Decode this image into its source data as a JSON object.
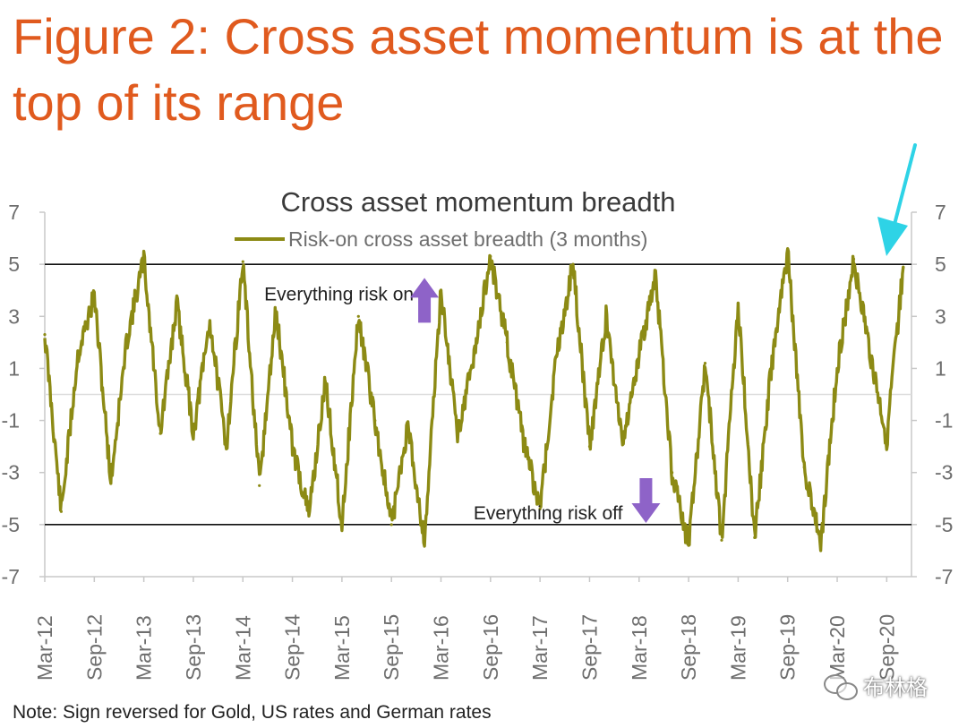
{
  "figure_title": "Figure 2: Cross asset momentum is at the top of its range",
  "note": "Note: Sign reversed for Gold, US rates and German rates",
  "watermark": "布林格",
  "colors": {
    "title": "#e05a1e",
    "series": "#8c8a14",
    "arrow_purple": "#8e63c8",
    "arrow_cyan": "#2ed3e6"
  },
  "chart_data": {
    "type": "line",
    "title": "Cross asset momentum breadth",
    "xlabel": "",
    "ylabel": "",
    "ylim": [
      -7,
      7
    ],
    "yticks": [
      7,
      5,
      3,
      1,
      -1,
      -3,
      -5,
      -7
    ],
    "xtick_labels": [
      "Mar-12",
      "Sep-12",
      "Mar-13",
      "Sep-13",
      "Mar-14",
      "Sep-14",
      "Mar-15",
      "Sep-15",
      "Mar-16",
      "Sep-16",
      "Mar-17",
      "Sep-17",
      "Mar-18",
      "Sep-18",
      "Mar-19",
      "Sep-19",
      "Mar-20",
      "Sep-20"
    ],
    "grid": false,
    "legend_position": "top-center",
    "reference_lines": [
      5,
      -5,
      0
    ],
    "annotations": [
      {
        "text": "Everything risk on",
        "x": "Jan-16",
        "y": 4.2,
        "arrow": "up"
      },
      {
        "text": "Everything risk off",
        "x": "Jun-18",
        "y": -4.8,
        "arrow": "down"
      }
    ],
    "series": [
      {
        "name": "Risk-on cross asset breadth (3 months)",
        "x": [
          "Mar-12",
          "May-12",
          "Jul-12",
          "Sep-12",
          "Nov-12",
          "Jan-13",
          "Mar-13",
          "May-13",
          "Jul-13",
          "Sep-13",
          "Nov-13",
          "Jan-14",
          "Mar-14",
          "May-14",
          "Jul-14",
          "Sep-14",
          "Nov-14",
          "Jan-15",
          "Mar-15",
          "May-15",
          "Jul-15",
          "Sep-15",
          "Nov-15",
          "Jan-16",
          "Mar-16",
          "May-16",
          "Jul-16",
          "Sep-16",
          "Nov-16",
          "Jan-17",
          "Mar-17",
          "May-17",
          "Jul-17",
          "Sep-17",
          "Nov-17",
          "Jan-18",
          "Mar-18",
          "May-18",
          "Jul-18",
          "Sep-18",
          "Nov-18",
          "Jan-19",
          "Mar-19",
          "May-19",
          "Jul-19",
          "Sep-19",
          "Nov-19",
          "Jan-20",
          "Mar-20",
          "May-20",
          "Jul-20",
          "Sep-20",
          "Nov-20"
        ],
        "values": [
          2.3,
          -4.5,
          1.5,
          3.8,
          -3.3,
          2.2,
          5.2,
          -1.5,
          3.5,
          -1.5,
          2.8,
          -2.0,
          5.1,
          -3.5,
          3.2,
          -2.0,
          -4.6,
          0.5,
          -5.0,
          3.0,
          -1.0,
          -5.0,
          -1.2,
          -5.6,
          4.0,
          -1.5,
          1.5,
          5.3,
          2.0,
          -1.8,
          -4.4,
          1.5,
          5.0,
          -2.0,
          3.0,
          -1.8,
          1.5,
          4.5,
          -3.0,
          -5.8,
          1.2,
          -5.6,
          3.5,
          -5.5,
          1.0,
          5.5,
          -2.8,
          -5.8,
          1.0,
          5.2,
          1.5,
          -1.8,
          4.9
        ]
      }
    ]
  }
}
